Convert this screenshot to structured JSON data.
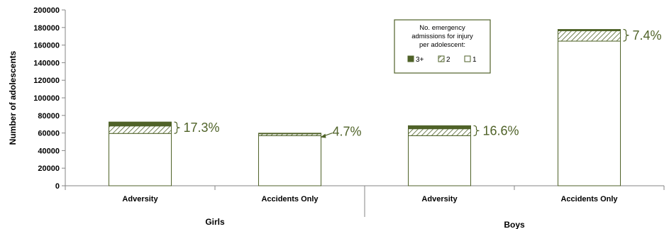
{
  "chart_data": {
    "type": "bar",
    "stacked": true,
    "ylabel": "Number of adolescents",
    "ylim": [
      0,
      200000
    ],
    "yticks": [
      "0",
      "20000",
      "40000",
      "60000",
      "80000",
      "100000",
      "120000",
      "140000",
      "160000",
      "180000",
      "200000"
    ],
    "groups": [
      "Girls",
      "Boys"
    ],
    "categories": [
      {
        "group": "Girls",
        "label": "Adversity",
        "pct_label": "17.3%"
      },
      {
        "group": "Girls",
        "label": "Accidents Only",
        "pct_label": "4.7%"
      },
      {
        "group": "Boys",
        "label": "Adversity",
        "pct_label": "16.6%"
      },
      {
        "group": "Boys",
        "label": "Accidents Only",
        "pct_label": "7.4%"
      }
    ],
    "series": [
      {
        "name": "1",
        "values": [
          59500,
          57000,
          57000,
          164500
        ]
      },
      {
        "name": "2",
        "values": [
          8500,
          2100,
          7800,
          11800
        ]
      },
      {
        "name": "3+",
        "values": [
          4500,
          700,
          3500,
          1500
        ]
      }
    ],
    "legend": {
      "title_lines": [
        "No. emergency",
        "admissions for injury",
        "per adolescent:"
      ],
      "position": "top-right"
    },
    "colors": {
      "s3": "#4f6228",
      "s2_hatch": "#4f6228",
      "s1": "#ffffff",
      "outline": "#4f6228",
      "text_accent": "#4f6228"
    }
  }
}
